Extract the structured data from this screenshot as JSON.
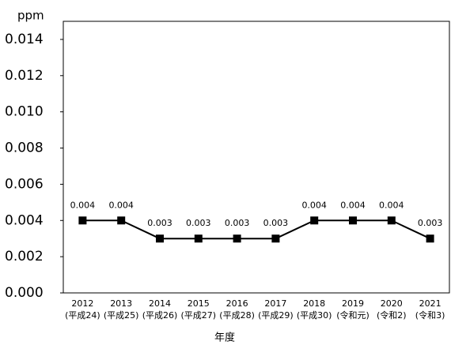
{
  "chart_data": {
    "type": "line",
    "y_label": "ppm",
    "x_label": "年度",
    "categories": [
      "2012",
      "2013",
      "2014",
      "2015",
      "2016",
      "2017",
      "2018",
      "2019",
      "2020",
      "2021"
    ],
    "era_labels": [
      "(平成24)",
      "(平成25)",
      "(平成26)",
      "(平成27)",
      "(平成28)",
      "(平成29)",
      "(平成30)",
      "(令和元)",
      "(令和2)",
      "(令和3)"
    ],
    "values": [
      0.004,
      0.004,
      0.003,
      0.003,
      0.003,
      0.003,
      0.004,
      0.004,
      0.004,
      0.003
    ],
    "color": "#000000",
    "ylim": [
      0,
      0.015
    ],
    "yticks": [
      {
        "value": 0,
        "label": "0.000"
      },
      {
        "value": 0.002,
        "label": "0.002"
      },
      {
        "value": 0.004,
        "label": "0.004"
      },
      {
        "value": 0.006,
        "label": "0.006"
      },
      {
        "value": 0.008,
        "label": "0.008"
      },
      {
        "value": 0.01,
        "label": "0.010"
      },
      {
        "value": 0.012,
        "label": "0.012"
      },
      {
        "value": 0.014,
        "label": "0.014"
      }
    ],
    "grid": false
  }
}
